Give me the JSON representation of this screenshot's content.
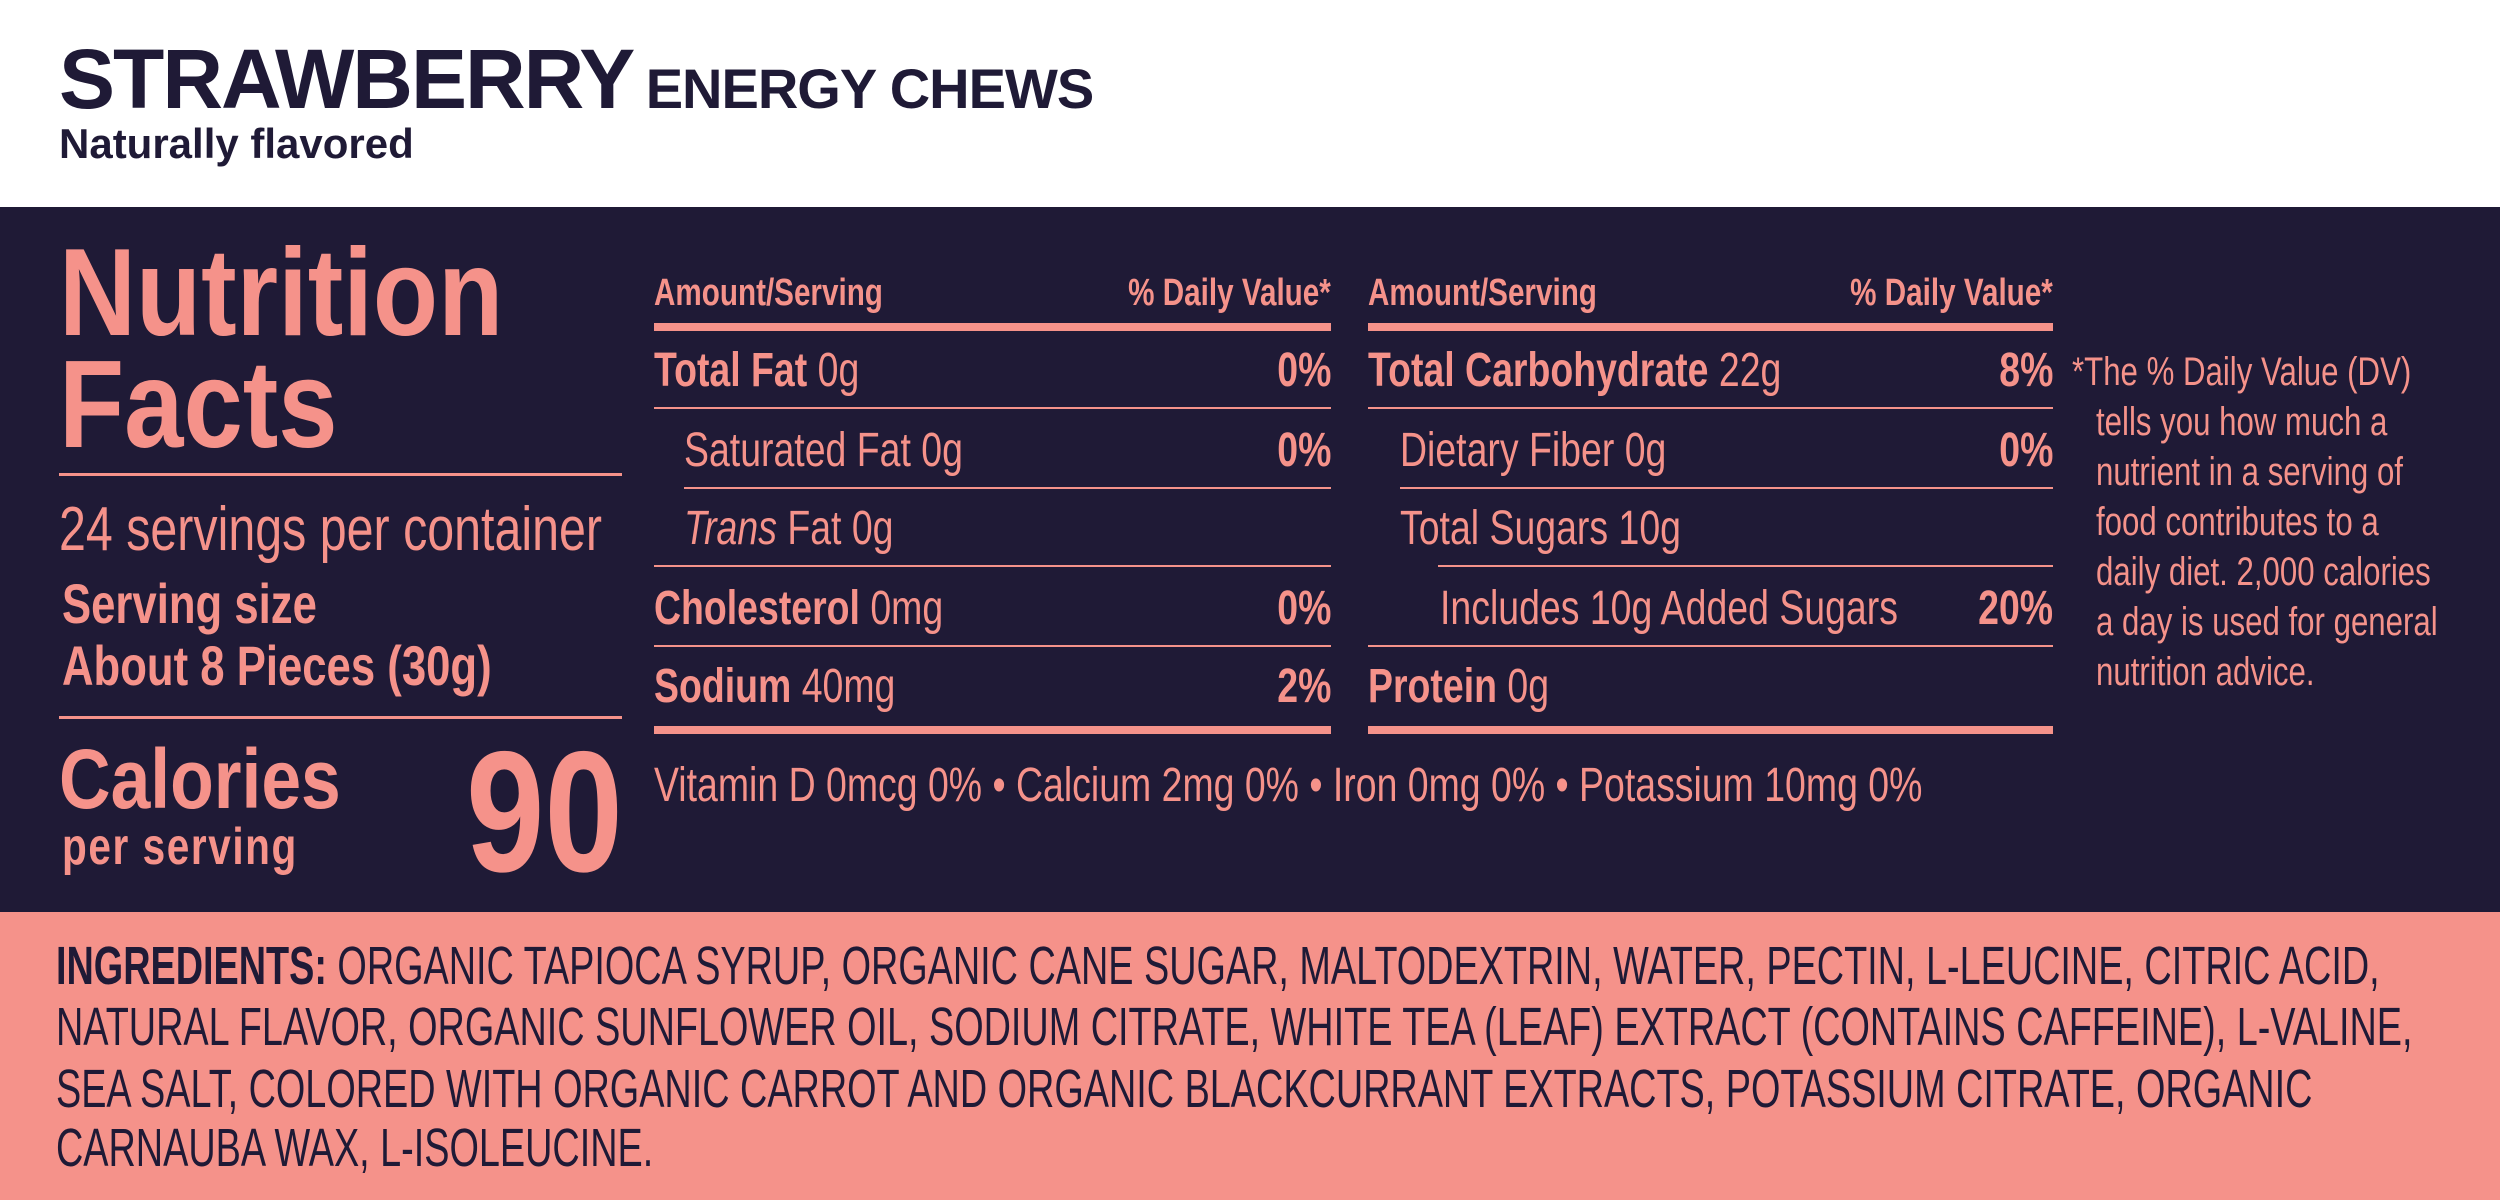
{
  "header": {
    "title_main": "STRAWBERRY",
    "title_sub": "ENERGY CHEWS",
    "subtitle": "Naturally flavored"
  },
  "facts": {
    "heading_line1": "Nutrition",
    "heading_line2": "Facts",
    "servings": "24 servings per container",
    "serving_size_label": "Serving size",
    "serving_size_value": "About 8 Pieces (30g)",
    "calories_label": "Calories",
    "calories_sub": "per serving",
    "calories_value": "90"
  },
  "table_left": {
    "amount_header": "Amount/Serving",
    "dv_header": "% Daily Value*",
    "rows": [
      {
        "name": "Total Fat",
        "amount": "0g",
        "dv": "0%"
      },
      {
        "name": "Saturated Fat",
        "amount": "0g",
        "dv": "0%"
      },
      {
        "name": "Trans",
        "name_suffix": "Fat",
        "amount": "0g",
        "dv": ""
      },
      {
        "name": "Cholesterol",
        "amount": "0mg",
        "dv": "0%"
      },
      {
        "name": "Sodium",
        "amount": "40mg",
        "dv": "2%"
      }
    ]
  },
  "table_right": {
    "amount_header": "Amount/Serving",
    "dv_header": "% Daily Value*",
    "rows": [
      {
        "name": "Total Carbohydrate",
        "amount": "22g",
        "dv": "8%"
      },
      {
        "name": "Dietary Fiber",
        "amount": "0g",
        "dv": "0%"
      },
      {
        "name": "Total Sugars",
        "amount": "10g",
        "dv": ""
      },
      {
        "name": "Includes 10g Added Sugars",
        "amount": "",
        "dv": "20%"
      },
      {
        "name": "Protein",
        "amount": "0g",
        "dv": ""
      }
    ]
  },
  "vitamins": "Vitamin D 0mcg 0% • Calcium 2mg 0% • Iron 0mg 0% • Potassium 10mg 0%",
  "footnote_lines": [
    "*The % Daily Value (DV)",
    "tells you how much a",
    "nutrient in a serving of",
    "food contributes to a",
    "daily diet. 2,000 calories",
    "a day is used for general",
    "nutrition advice."
  ],
  "ingredients": {
    "label": "INGREDIENTS:",
    "lines": [
      "ORGANIC TAPIOCA SYRUP, ORGANIC CANE SUGAR, MALTODEXTRIN, WATER, PECTIN, L-LEUCINE, CITRIC ACID,",
      "NATURAL FLAVOR, ORGANIC SUNFLOWER OIL, SODIUM CITRATE, WHITE TEA (LEAF) EXTRACT (CONTAINS CAFFEINE), L-VALINE,",
      "SEA SALT, COLORED WITH ORGANIC CARROT AND ORGANIC BLACKCURRANT EXTRACTS, POTASSIUM CITRATE, ORGANIC",
      "CARNAUBA WAX, L-ISOLEUCINE."
    ]
  },
  "colors": {
    "navy": "#1f1a36",
    "salmon": "#f5928a",
    "white": "#ffffff"
  }
}
